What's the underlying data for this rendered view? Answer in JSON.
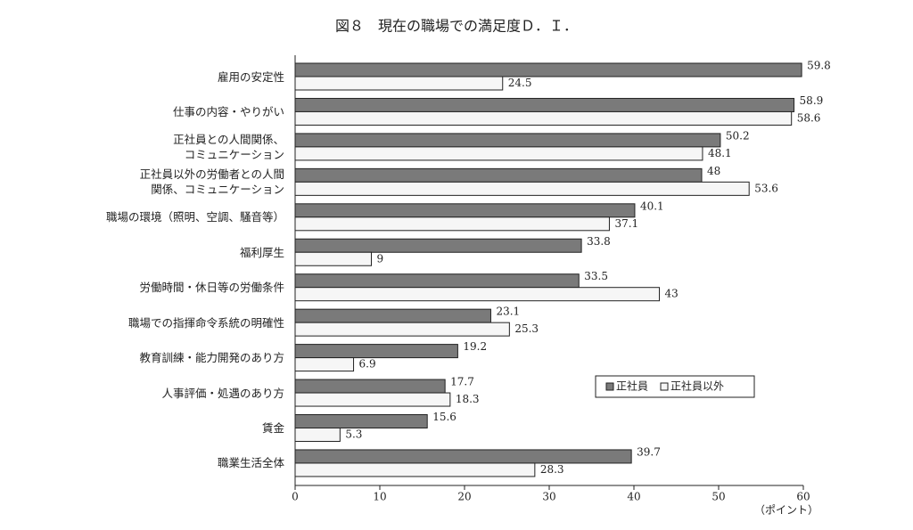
{
  "chart_data": {
    "type": "bar",
    "orientation": "horizontal",
    "title": "図８　現在の職場での満足度Ｄ．Ｉ．",
    "x_label": "（ポイント）",
    "categories": [
      "雇用の安定性",
      "仕事の内容・やりがい",
      "正社員との人間関係、\nコミュニケーション",
      "正社員以外の労働者との人間\n関係、コミュニケーション",
      "職場の環境（照明、空調、騒音等）",
      "福利厚生",
      "労働時間・休日等の労働条件",
      "職場での指揮命令系統の明確性",
      "教育訓練・能力開発のあり方",
      "人事評価・処遇のあり方",
      "賃金",
      "職業生活全体"
    ],
    "series": [
      {
        "name": "正社員",
        "color": "#7a7a7a",
        "values": [
          59.8,
          58.9,
          50.2,
          48.0,
          40.1,
          33.8,
          33.5,
          23.1,
          19.2,
          17.7,
          15.6,
          39.7
        ]
      },
      {
        "name": "正社員以外",
        "color": "#f6f6f6",
        "values": [
          24.5,
          58.6,
          48.1,
          53.6,
          37.1,
          9.0,
          43.0,
          25.3,
          6.9,
          18.3,
          5.3,
          28.3
        ]
      }
    ],
    "xlim": [
      0,
      60
    ],
    "xticks": [
      0,
      10,
      20,
      30,
      40,
      50,
      60
    ],
    "legend": "right"
  }
}
